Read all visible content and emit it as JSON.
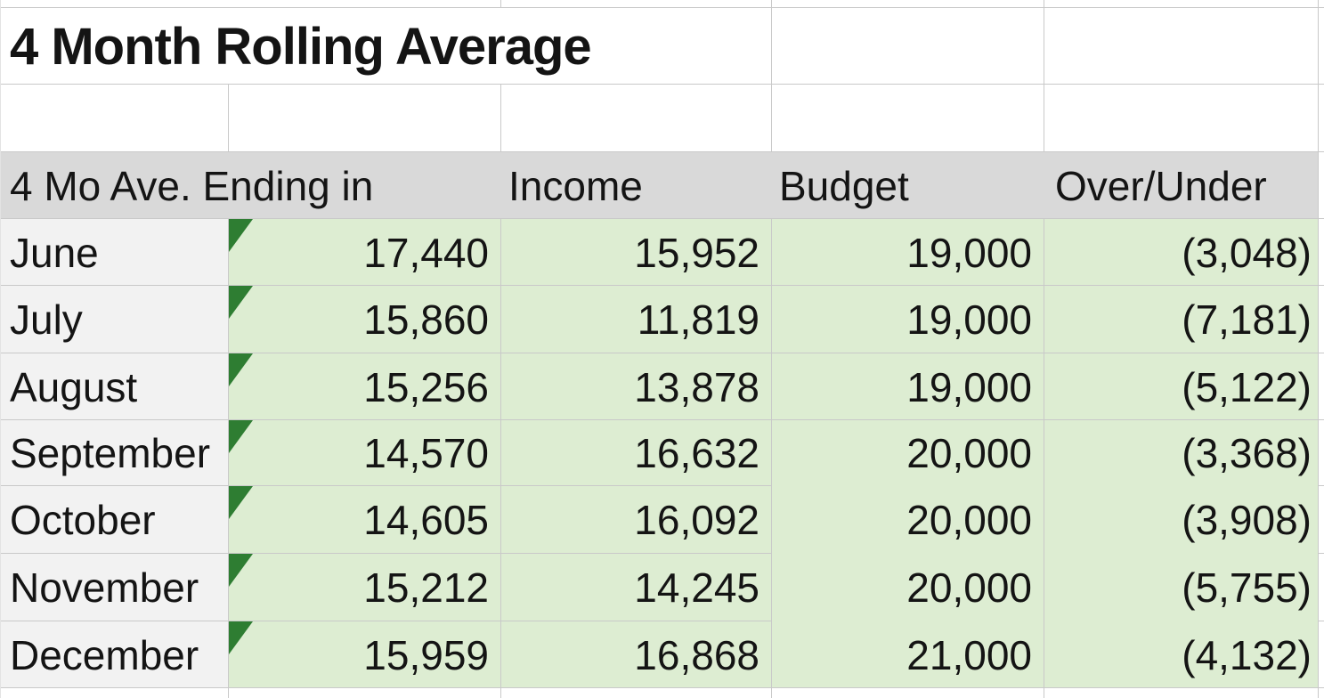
{
  "title": "4 Month Rolling Average",
  "table": {
    "columns": [
      "4 Mo Ave. Ending in",
      "Income",
      "Budget",
      "Over/Under"
    ],
    "rows": [
      {
        "month": "June",
        "rolling_avg": "17,440",
        "income": "15,952",
        "budget": "19,000",
        "over_under": "(3,048)"
      },
      {
        "month": "July",
        "rolling_avg": "15,860",
        "income": "11,819",
        "budget": "19,000",
        "over_under": "(7,181)"
      },
      {
        "month": "August",
        "rolling_avg": "15,256",
        "income": "13,878",
        "budget": "19,000",
        "over_under": "(5,122)"
      },
      {
        "month": "September",
        "rolling_avg": "14,570",
        "income": "16,632",
        "budget": "20,000",
        "over_under": "(3,368)"
      },
      {
        "month": "October",
        "rolling_avg": "14,605",
        "income": "16,092",
        "budget": "20,000",
        "over_under": "(3,908)"
      },
      {
        "month": "November",
        "rolling_avg": "15,212",
        "income": "14,245",
        "budget": "20,000",
        "over_under": "(5,755)"
      },
      {
        "month": "December",
        "rolling_avg": "15,959",
        "income": "16,868",
        "budget": "21,000",
        "over_under": "(4,132)"
      }
    ]
  },
  "colors": {
    "header_bg": "#d9d9d9",
    "row_label_bg": "#f2f2f2",
    "cell_green": "#ddedd2",
    "error_triangle": "#2e7d32",
    "gridline": "#c9c9c9",
    "text": "#141414"
  }
}
